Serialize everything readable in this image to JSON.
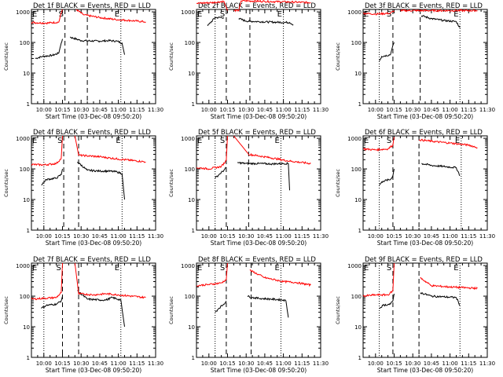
{
  "figure": {
    "time_axis": {
      "title": "Start Time (03-Dec-08 09:50:20)",
      "ticks": [
        "10:00",
        "10:15",
        "10:30",
        "10:45",
        "11:00",
        "11:15",
        "11:30"
      ],
      "range_min": [
        0,
        100
      ]
    },
    "y_axis": {
      "title": "Counts/sec",
      "scale": "log",
      "ticks": [
        "1",
        "10",
        "100",
        "1000"
      ],
      "range": [
        1,
        1200
      ]
    },
    "markers": {
      "E": "E",
      "S": "S"
    },
    "colors": {
      "events": "#000000",
      "lld": "#ff0000",
      "dotted": "#000000",
      "dashed": "#000000"
    }
  },
  "chart_data": [
    {
      "type": "line",
      "title": "Det 1f BLACK = Events, RED = LLD",
      "dotted_x": [
        10,
        72
      ],
      "dashed_x": [
        27,
        45
      ],
      "series": [
        {
          "name": "Events",
          "start": [
            [
              3,
              30
            ],
            [
              9,
              35
            ],
            [
              17,
              38
            ],
            [
              22,
              45
            ],
            [
              24,
              95
            ],
            [
              25,
              130
            ]
          ],
          "end": [
            [
              31,
              150
            ],
            [
              40,
              115
            ],
            [
              55,
              110
            ],
            [
              62,
              115
            ],
            [
              69,
              110
            ],
            [
              73,
              95
            ],
            [
              75,
              40
            ]
          ]
        },
        {
          "name": "LLD",
          "start": [
            [
              0,
              450
            ],
            [
              12,
              430
            ],
            [
              22,
              460
            ],
            [
              24,
              900
            ],
            [
              25,
              1200
            ]
          ],
          "end": [
            [
              36,
              1200
            ],
            [
              42,
              800
            ],
            [
              55,
              650
            ],
            [
              68,
              560
            ],
            [
              80,
              520
            ],
            [
              92,
              470
            ]
          ]
        }
      ]
    },
    {
      "type": "line",
      "title": "Det 2f BLACK = Events, RED = LLD",
      "dotted_x": [
        15,
        70
      ],
      "dashed_x": [
        24,
        43
      ],
      "series": [
        {
          "name": "Events",
          "start": [
            [
              9,
              350
            ],
            [
              15,
              650
            ],
            [
              22,
              650
            ]
          ],
          "end": [
            [
              34,
              600
            ],
            [
              40,
              500
            ],
            [
              50,
              480
            ],
            [
              62,
              460
            ],
            [
              75,
              450
            ],
            [
              78,
              380
            ]
          ]
        },
        {
          "name": "LLD",
          "start": [
            [
              0,
              1900
            ],
            [
              12,
              2000
            ],
            [
              22,
              2200
            ],
            [
              25,
              1100
            ]
          ],
          "end": [
            [
              30,
              1100
            ],
            [
              34,
              1100
            ],
            [
              36,
              2300
            ],
            [
              55,
              2200
            ],
            [
              75,
              2100
            ],
            [
              92,
              2000
            ]
          ]
        }
      ]
    },
    {
      "type": "line",
      "title": "Det 3f BLACK = Events, RED = LLD",
      "dotted_x": [
        13,
        78
      ],
      "dashed_x": [
        24,
        46
      ],
      "series": [
        {
          "name": "Events",
          "start": [
            [
              13,
              25
            ],
            [
              15,
              35
            ],
            [
              22,
              40
            ],
            [
              24,
              80
            ],
            [
              25,
              100
            ]
          ],
          "end": [
            [
              47,
              750
            ],
            [
              55,
              600
            ],
            [
              65,
              520
            ],
            [
              75,
              480
            ],
            [
              78,
              300
            ]
          ]
        },
        {
          "name": "LLD",
          "start": [
            [
              0,
              900
            ],
            [
              10,
              850
            ],
            [
              22,
              900
            ],
            [
              25,
              1100
            ]
          ],
          "end": [
            [
              30,
              1100
            ],
            [
              42,
              1100
            ],
            [
              55,
              1100
            ],
            [
              75,
              1100
            ],
            [
              92,
              1100
            ]
          ]
        }
      ]
    },
    {
      "type": "line",
      "title": "Det 4f BLACK = Events, RED = LLD",
      "dotted_x": [
        10,
        73
      ],
      "dashed_x": [
        26,
        38
      ],
      "series": [
        {
          "name": "Events",
          "start": [
            [
              8,
              30
            ],
            [
              12,
              45
            ],
            [
              20,
              50
            ],
            [
              24,
              65
            ],
            [
              25,
              100
            ]
          ],
          "end": [
            [
              37,
              170
            ],
            [
              45,
              90
            ],
            [
              55,
              85
            ],
            [
              62,
              85
            ],
            [
              69,
              80
            ],
            [
              73,
              70
            ],
            [
              75,
              10
            ]
          ]
        },
        {
          "name": "LLD",
          "start": [
            [
              0,
              140
            ],
            [
              10,
              135
            ],
            [
              20,
              150
            ],
            [
              24,
              220
            ],
            [
              25,
              1200
            ]
          ],
          "end": [
            [
              35,
              1200
            ],
            [
              38,
              280
            ],
            [
              55,
              250
            ],
            [
              70,
              210
            ],
            [
              92,
              170
            ]
          ]
        }
      ]
    },
    {
      "type": "line",
      "title": "Det 5f BLACK = Events, RED = LLD",
      "dotted_x": [
        15,
        68
      ],
      "dashed_x": [
        24,
        42
      ],
      "series": [
        {
          "name": "Events",
          "start": [
            [
              15,
              50
            ],
            [
              19,
              70
            ],
            [
              22,
              90
            ],
            [
              24,
              110
            ]
          ],
          "end": [
            [
              33,
              160
            ],
            [
              40,
              150
            ],
            [
              50,
              150
            ],
            [
              60,
              145
            ],
            [
              70,
              150
            ],
            [
              74,
              150
            ],
            [
              75,
              20
            ]
          ]
        },
        {
          "name": "LLD",
          "start": [
            [
              0,
              110
            ],
            [
              10,
              100
            ],
            [
              20,
              120
            ],
            [
              24,
              190
            ],
            [
              25,
              1200
            ]
          ],
          "end": [
            [
              30,
              1200
            ],
            [
              42,
              300
            ],
            [
              60,
              230
            ],
            [
              75,
              180
            ],
            [
              92,
              150
            ]
          ]
        }
      ]
    },
    {
      "type": "line",
      "title": "Det 6f BLACK = Events, RED = LLD",
      "dotted_x": [
        13,
        79
      ],
      "dashed_x": [
        24,
        45
      ],
      "series": [
        {
          "name": "Events",
          "start": [
            [
              13,
              30
            ],
            [
              16,
              40
            ],
            [
              22,
              45
            ],
            [
              24,
              60
            ],
            [
              25,
              100
            ]
          ],
          "end": [
            [
              47,
              150
            ],
            [
              55,
              130
            ],
            [
              65,
              120
            ],
            [
              75,
              110
            ],
            [
              78,
              60
            ]
          ]
        },
        {
          "name": "LLD",
          "start": [
            [
              0,
              450
            ],
            [
              10,
              420
            ],
            [
              20,
              450
            ],
            [
              24,
              600
            ],
            [
              25,
              1100
            ]
          ],
          "end": [
            [
              45,
              900
            ],
            [
              55,
              800
            ],
            [
              70,
              700
            ],
            [
              85,
              600
            ],
            [
              92,
              500
            ]
          ]
        }
      ]
    },
    {
      "type": "line",
      "title": "Det 7f BLACK = Events, RED = LLD",
      "dotted_x": [
        10,
        72
      ],
      "dashed_x": [
        25,
        38
      ],
      "series": [
        {
          "name": "Events",
          "start": [
            [
              8,
              40
            ],
            [
              12,
              50
            ],
            [
              20,
              55
            ],
            [
              24,
              70
            ],
            [
              25,
              100
            ]
          ],
          "end": [
            [
              37,
              150
            ],
            [
              45,
              80
            ],
            [
              55,
              75
            ],
            [
              60,
              75
            ],
            [
              65,
              90
            ],
            [
              72,
              75
            ],
            [
              75,
              10
            ]
          ]
        },
        {
          "name": "LLD",
          "start": [
            [
              0,
              80
            ],
            [
              10,
              85
            ],
            [
              20,
              90
            ],
            [
              24,
              130
            ],
            [
              25,
              1200
            ]
          ],
          "end": [
            [
              35,
              1200
            ],
            [
              38,
              120
            ],
            [
              50,
              110
            ],
            [
              60,
              120
            ],
            [
              70,
              110
            ],
            [
              92,
              90
            ]
          ]
        }
      ]
    },
    {
      "type": "line",
      "title": "Det 8f BLACK = Events, RED = LLD",
      "dotted_x": [
        15,
        68
      ],
      "dashed_x": [
        24,
        44
      ],
      "series": [
        {
          "name": "Events",
          "start": [
            [
              15,
              30
            ],
            [
              18,
              40
            ],
            [
              22,
              55
            ],
            [
              24,
              70
            ]
          ],
          "end": [
            [
              41,
              100
            ],
            [
              45,
              90
            ],
            [
              50,
              85
            ],
            [
              60,
              80
            ],
            [
              70,
              75
            ],
            [
              72,
              70
            ],
            [
              74,
              20
            ]
          ]
        },
        {
          "name": "LLD",
          "start": [
            [
              0,
              220
            ],
            [
              10,
              240
            ],
            [
              20,
              270
            ],
            [
              24,
              350
            ],
            [
              25,
              1200
            ]
          ],
          "end": [
            [
              43,
              700
            ],
            [
              55,
              400
            ],
            [
              70,
              300
            ],
            [
              80,
              280
            ],
            [
              92,
              230
            ]
          ]
        }
      ]
    },
    {
      "type": "line",
      "title": "Det 9f BLACK = Events, RED = LLD",
      "dotted_x": [
        13,
        78
      ],
      "dashed_x": [
        24,
        45
      ],
      "series": [
        {
          "name": "Events",
          "start": [
            [
              13,
              40
            ],
            [
              16,
              50
            ],
            [
              22,
              55
            ],
            [
              24,
              70
            ],
            [
              25,
              120
            ]
          ],
          "end": [
            [
              46,
              130
            ],
            [
              55,
              100
            ],
            [
              65,
              95
            ],
            [
              75,
              90
            ],
            [
              78,
              50
            ]
          ]
        },
        {
          "name": "LLD",
          "start": [
            [
              0,
              100
            ],
            [
              10,
              110
            ],
            [
              20,
              110
            ],
            [
              24,
              150
            ],
            [
              25,
              1200
            ]
          ],
          "end": [
            [
              46,
              400
            ],
            [
              55,
              220
            ],
            [
              70,
              200
            ],
            [
              80,
              190
            ],
            [
              92,
              180
            ]
          ]
        }
      ]
    }
  ]
}
